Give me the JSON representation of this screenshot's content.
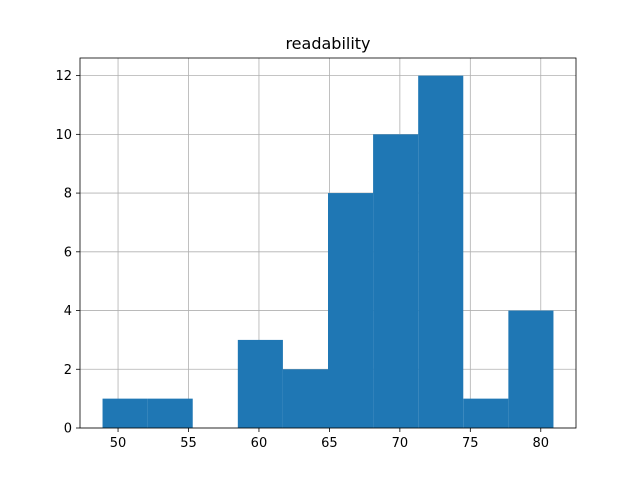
{
  "chart_data": {
    "type": "bar",
    "title": "readability",
    "xlabel": "",
    "ylabel": "",
    "bins": [
      {
        "start": 48.9,
        "end": 52.1,
        "count": 1
      },
      {
        "start": 52.1,
        "end": 55.3,
        "count": 1
      },
      {
        "start": 55.3,
        "end": 58.5,
        "count": 0
      },
      {
        "start": 58.5,
        "end": 61.7,
        "count": 3
      },
      {
        "start": 61.7,
        "end": 64.9,
        "count": 2
      },
      {
        "start": 64.9,
        "end": 68.1,
        "count": 8
      },
      {
        "start": 68.1,
        "end": 71.3,
        "count": 10
      },
      {
        "start": 71.3,
        "end": 74.5,
        "count": 12
      },
      {
        "start": 74.5,
        "end": 77.7,
        "count": 1
      },
      {
        "start": 77.7,
        "end": 80.9,
        "count": 4
      }
    ],
    "xlim": [
      47.3,
      82.5
    ],
    "ylim": [
      0,
      12.6
    ],
    "xticks": [
      50,
      55,
      60,
      65,
      70,
      75,
      80
    ],
    "yticks": [
      0,
      2,
      4,
      6,
      8,
      10,
      12
    ],
    "grid": true,
    "bar_color": "#1f77b4"
  }
}
